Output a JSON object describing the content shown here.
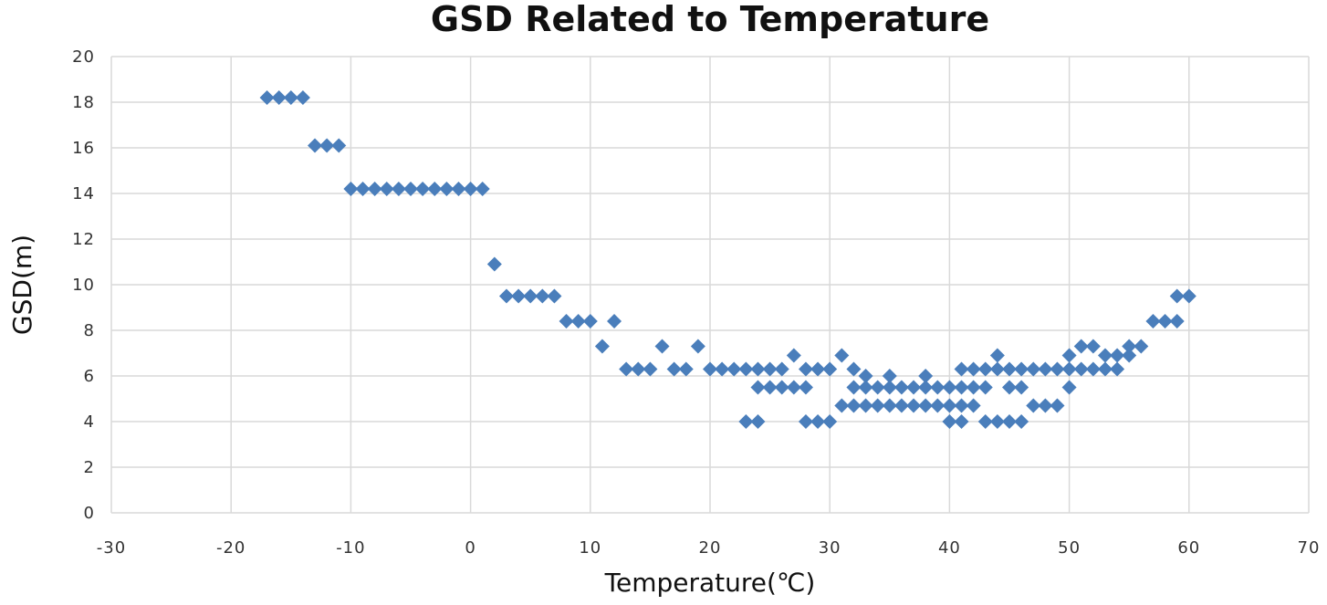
{
  "chart_data": {
    "type": "scatter",
    "title": "GSD Related to Temperature",
    "xlabel": "Temperature(℃)",
    "ylabel": "GSD(m)",
    "xlim": [
      -30,
      70
    ],
    "ylim": [
      0,
      20
    ],
    "xticks": [
      "-30",
      "-20",
      "-10",
      "0",
      "10",
      "20",
      "30",
      "40",
      "50",
      "60",
      "70"
    ],
    "yticks": [
      "0",
      "2",
      "4",
      "6",
      "8",
      "10",
      "12",
      "14",
      "16",
      "18",
      "20"
    ],
    "grid": true,
    "legend": "none",
    "marker": "diamond",
    "color": "#4a7ebb",
    "points": [
      [
        -17,
        18.2
      ],
      [
        -16,
        18.2
      ],
      [
        -15,
        18.2
      ],
      [
        -14,
        18.2
      ],
      [
        -13,
        16.1
      ],
      [
        -12,
        16.1
      ],
      [
        -11,
        16.1
      ],
      [
        -10,
        14.2
      ],
      [
        -9,
        14.2
      ],
      [
        -8,
        14.2
      ],
      [
        -7,
        14.2
      ],
      [
        -6,
        14.2
      ],
      [
        -5,
        14.2
      ],
      [
        -4,
        14.2
      ],
      [
        -3,
        14.2
      ],
      [
        -2,
        14.2
      ],
      [
        -1,
        14.2
      ],
      [
        0,
        14.2
      ],
      [
        1,
        14.2
      ],
      [
        2,
        10.9
      ],
      [
        3,
        9.5
      ],
      [
        4,
        9.5
      ],
      [
        5,
        9.5
      ],
      [
        6,
        9.5
      ],
      [
        7,
        9.5
      ],
      [
        8,
        8.4
      ],
      [
        9,
        8.4
      ],
      [
        10,
        8.4
      ],
      [
        12,
        8.4
      ],
      [
        11,
        7.3
      ],
      [
        13,
        6.3
      ],
      [
        14,
        6.3
      ],
      [
        15,
        6.3
      ],
      [
        16,
        7.3
      ],
      [
        17,
        6.3
      ],
      [
        18,
        6.3
      ],
      [
        19,
        7.3
      ],
      [
        20,
        6.3
      ],
      [
        21,
        6.3
      ],
      [
        22,
        6.3
      ],
      [
        23,
        6.3
      ],
      [
        24,
        6.3
      ],
      [
        25,
        6.3
      ],
      [
        26,
        6.3
      ],
      [
        28,
        6.3
      ],
      [
        29,
        6.3
      ],
      [
        30,
        6.3
      ],
      [
        27,
        6.9
      ],
      [
        31,
        6.9
      ],
      [
        23,
        4.0
      ],
      [
        24,
        4.0
      ],
      [
        28,
        4.0
      ],
      [
        29,
        4.0
      ],
      [
        30,
        4.0
      ],
      [
        24,
        5.5
      ],
      [
        25,
        5.5
      ],
      [
        26,
        5.5
      ],
      [
        27,
        5.5
      ],
      [
        28,
        5.5
      ],
      [
        31,
        4.7
      ],
      [
        32,
        4.7
      ],
      [
        33,
        4.7
      ],
      [
        34,
        4.7
      ],
      [
        35,
        4.7
      ],
      [
        36,
        4.7
      ],
      [
        37,
        4.7
      ],
      [
        38,
        4.7
      ],
      [
        39,
        4.7
      ],
      [
        40,
        4.7
      ],
      [
        41,
        4.7
      ],
      [
        42,
        4.7
      ],
      [
        32,
        5.5
      ],
      [
        33,
        5.5
      ],
      [
        34,
        5.5
      ],
      [
        35,
        5.5
      ],
      [
        36,
        5.5
      ],
      [
        37,
        5.5
      ],
      [
        38,
        5.5
      ],
      [
        39,
        5.5
      ],
      [
        40,
        5.5
      ],
      [
        41,
        5.5
      ],
      [
        42,
        5.5
      ],
      [
        43,
        5.5
      ],
      [
        32,
        6.3
      ],
      [
        33,
        6.0
      ],
      [
        35,
        6.0
      ],
      [
        38,
        6.0
      ],
      [
        40,
        4.0
      ],
      [
        41,
        4.0
      ],
      [
        43,
        4.0
      ],
      [
        44,
        4.0
      ],
      [
        45,
        4.0
      ],
      [
        46,
        4.0
      ],
      [
        41,
        6.3
      ],
      [
        42,
        6.3
      ],
      [
        43,
        6.3
      ],
      [
        44,
        6.3
      ],
      [
        45,
        6.3
      ],
      [
        46,
        6.3
      ],
      [
        47,
        6.3
      ],
      [
        48,
        6.3
      ],
      [
        49,
        6.3
      ],
      [
        50,
        6.3
      ],
      [
        51,
        6.3
      ],
      [
        52,
        6.3
      ],
      [
        53,
        6.3
      ],
      [
        54,
        6.3
      ],
      [
        44,
        6.9
      ],
      [
        45,
        5.5
      ],
      [
        46,
        5.5
      ],
      [
        47,
        4.7
      ],
      [
        48,
        4.7
      ],
      [
        49,
        4.7
      ],
      [
        50,
        5.5
      ],
      [
        50,
        6.9
      ],
      [
        51,
        7.3
      ],
      [
        52,
        7.3
      ],
      [
        53,
        6.9
      ],
      [
        54,
        6.9
      ],
      [
        55,
        6.9
      ],
      [
        55,
        7.3
      ],
      [
        56,
        7.3
      ],
      [
        57,
        8.4
      ],
      [
        58,
        8.4
      ],
      [
        59,
        8.4
      ],
      [
        59,
        9.5
      ],
      [
        60,
        9.5
      ]
    ]
  }
}
